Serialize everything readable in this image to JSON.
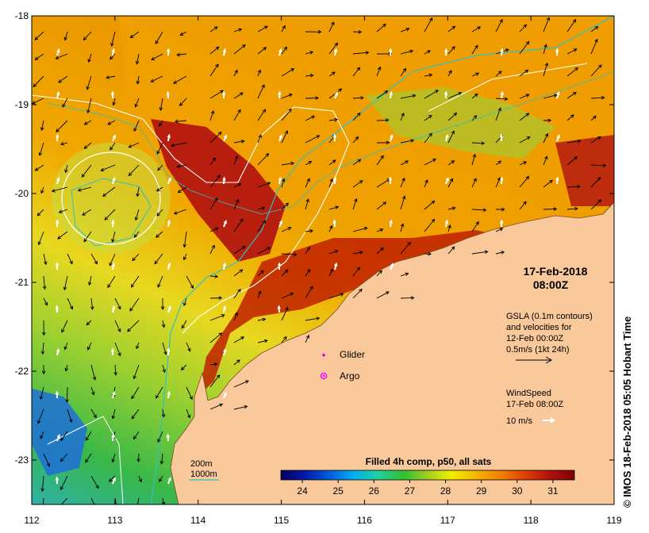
{
  "map": {
    "lon_ticks": [
      "112",
      "113",
      "114",
      "115",
      "116",
      "117",
      "118",
      "119"
    ],
    "lat_ticks": [
      "-18",
      "-19",
      "-20",
      "-21",
      "-22",
      "-23"
    ],
    "lon_range": [
      112,
      119
    ],
    "lat_range": [
      -23.5,
      -18
    ],
    "land_color": "#f9c89b",
    "ocean_colors": {
      "cool": "#2fb84a",
      "warm": "#f0a000",
      "hot": "#b01010"
    }
  },
  "annotations": {
    "date": "17-Feb-2018",
    "time": "08:00Z",
    "gsla_line1": "GSLA (0.1m contours)",
    "gsla_line2": "and velocities for",
    "gsla_line3": "12-Feb 00:00Z",
    "gsla_line4": "0.5m/s (1kt 24h)",
    "wind_line1": "WindSpeed",
    "wind_line2": "17-Feb 08:00Z",
    "wind_scale": "10 m/s",
    "glider_label": "Glider",
    "argo_label": "Argo",
    "contour_200": "200m",
    "contour_1000": "1000m"
  },
  "colorbar": {
    "title": "Filled 4h comp, p50, all sats",
    "ticks": [
      "24",
      "25",
      "26",
      "27",
      "28",
      "29",
      "30",
      "31"
    ],
    "range": [
      23.4,
      31.6
    ],
    "stops": [
      "#00005a",
      "#0018a8",
      "#0060e0",
      "#00b0f0",
      "#20d0a0",
      "#30c030",
      "#a0d020",
      "#f0f000",
      "#f8b000",
      "#f08000",
      "#e04000",
      "#b01010",
      "#800000"
    ]
  },
  "credit": "© IMOS 18-Feb-2018 05:05 Hobart Time",
  "markers": {
    "glider_color": "#cc00cc",
    "argo_color": "#ff00ff",
    "isobath_color": "#30c0c0"
  }
}
